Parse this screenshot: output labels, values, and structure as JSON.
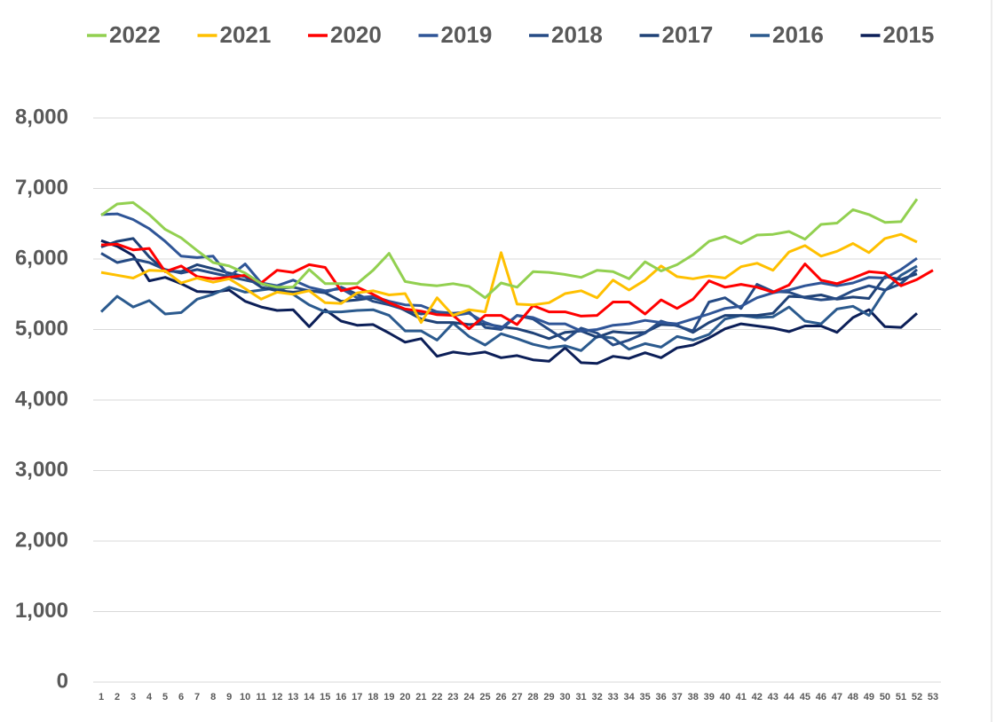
{
  "chart_data": {
    "type": "line",
    "categories": [
      1,
      2,
      3,
      4,
      5,
      6,
      7,
      8,
      9,
      10,
      11,
      12,
      13,
      14,
      15,
      16,
      17,
      18,
      19,
      20,
      21,
      22,
      23,
      24,
      25,
      26,
      27,
      28,
      29,
      30,
      31,
      32,
      33,
      34,
      35,
      36,
      37,
      38,
      39,
      40,
      41,
      42,
      43,
      44,
      45,
      46,
      47,
      48,
      49,
      50,
      51,
      52,
      53
    ],
    "ylim": [
      0,
      8000
    ],
    "yticks": [
      0,
      {
        "value": 1000,
        "label": "1,000"
      },
      {
        "value": 2000,
        "label": "2,000"
      },
      {
        "value": 3000,
        "label": "3,000"
      },
      {
        "value": 4000,
        "label": "4,000"
      },
      {
        "value": 5000,
        "label": "5,000"
      },
      {
        "value": 6000,
        "label": "6,000"
      },
      {
        "value": 7000,
        "label": "7,000"
      },
      {
        "value": 8000,
        "label": "8,000"
      }
    ],
    "grid": true,
    "legend": "top",
    "series": [
      {
        "name": "2022",
        "color": "#92d050",
        "values": [
          6620,
          6780,
          6800,
          6630,
          6420,
          6300,
          6120,
          5950,
          5900,
          5800,
          5650,
          5600,
          5600,
          5850,
          5650,
          5650,
          5650,
          5840,
          6080,
          5680,
          5640,
          5620,
          5650,
          5610,
          5450,
          5660,
          5600,
          5820,
          5810,
          5780,
          5740,
          5840,
          5820,
          5720,
          5960,
          5830,
          5920,
          6060,
          6250,
          6320,
          6220,
          6340,
          6350,
          6390,
          6280,
          6490,
          6510,
          6700,
          6630,
          6520,
          6530,
          6850,
          null
        ]
      },
      {
        "name": "2021",
        "color": "#ffc000",
        "values": [
          5810,
          5770,
          5730,
          5840,
          5830,
          5660,
          5730,
          5670,
          5720,
          5580,
          5430,
          5530,
          5500,
          5550,
          5380,
          5370,
          5520,
          5550,
          5490,
          5510,
          5100,
          5450,
          5200,
          5280,
          5250,
          6090,
          5360,
          5350,
          5380,
          5510,
          5550,
          5450,
          5700,
          5560,
          5700,
          5900,
          5750,
          5720,
          5760,
          5730,
          5890,
          5940,
          5840,
          6100,
          6190,
          6040,
          6110,
          6220,
          6090,
          6290,
          6350,
          6240,
          null
        ]
      },
      {
        "name": "2020",
        "color": "#ff0000",
        "values": [
          6200,
          6210,
          6130,
          6150,
          5820,
          5900,
          5750,
          5720,
          5740,
          5770,
          5660,
          5840,
          5810,
          5920,
          5880,
          5550,
          5600,
          5500,
          5380,
          5290,
          5260,
          5210,
          5200,
          5010,
          5200,
          5200,
          5070,
          5340,
          5250,
          5250,
          5190,
          5200,
          5390,
          5390,
          5220,
          5420,
          5300,
          5430,
          5690,
          5600,
          5640,
          5600,
          5530,
          5630,
          5930,
          5700,
          5650,
          5730,
          5820,
          5800,
          5620,
          5710,
          5840
        ]
      },
      {
        "name": "2019",
        "color": "#2f5597",
        "values": [
          6630,
          6640,
          6560,
          6430,
          6250,
          6040,
          6020,
          6040,
          5750,
          5930,
          5660,
          5620,
          5700,
          5600,
          5550,
          5580,
          5450,
          5470,
          5400,
          5350,
          5340,
          5250,
          5200,
          5230,
          5100,
          5020,
          5200,
          5170,
          5080,
          5080,
          4980,
          5000,
          5060,
          5080,
          5130,
          5100,
          5080,
          5150,
          5220,
          5300,
          5330,
          5450,
          5520,
          5560,
          5620,
          5660,
          5620,
          5660,
          5740,
          5730,
          5850,
          6010,
          null
        ]
      },
      {
        "name": "2018",
        "color": "#264b85",
        "values": [
          6080,
          5950,
          6000,
          5950,
          5850,
          5800,
          5850,
          5800,
          5750,
          5700,
          5650,
          5580,
          5600,
          5550,
          5530,
          5600,
          5500,
          5400,
          5350,
          5280,
          5220,
          5250,
          5230,
          5250,
          5030,
          5000,
          5200,
          5150,
          5000,
          4850,
          5020,
          4950,
          4780,
          4850,
          4950,
          5120,
          5050,
          4980,
          5390,
          5450,
          5300,
          5640,
          5540,
          5530,
          5450,
          5420,
          5440,
          5550,
          5620,
          5560,
          5650,
          5850,
          null
        ]
      },
      {
        "name": "2017",
        "color": "#1f4277",
        "values": [
          6170,
          6250,
          6290,
          6030,
          5830,
          5820,
          5920,
          5860,
          5800,
          5750,
          5600,
          5550,
          5530,
          5550,
          5520,
          5400,
          5420,
          5450,
          5380,
          5270,
          5150,
          5100,
          5100,
          5070,
          5080,
          5040,
          5010,
          4950,
          4870,
          4960,
          4980,
          4890,
          4970,
          4950,
          4960,
          5070,
          5060,
          4960,
          5100,
          5200,
          5200,
          5200,
          5230,
          5470,
          5460,
          5490,
          5430,
          5460,
          5440,
          5750,
          5710,
          5790,
          null
        ]
      },
      {
        "name": "2016",
        "color": "#2b5a8e",
        "values": [
          5250,
          5470,
          5320,
          5410,
          5220,
          5240,
          5430,
          5500,
          5600,
          5530,
          5560,
          5590,
          5500,
          5350,
          5250,
          5250,
          5270,
          5280,
          5200,
          4980,
          4980,
          4850,
          5090,
          4900,
          4780,
          4940,
          4870,
          4790,
          4740,
          4770,
          4700,
          4900,
          4880,
          4720,
          4800,
          4750,
          4900,
          4850,
          4930,
          5150,
          5200,
          5170,
          5180,
          5320,
          5120,
          5080,
          5290,
          5330,
          5200,
          5550,
          5770,
          5900,
          null
        ]
      },
      {
        "name": "2015",
        "color": "#0c1f58",
        "values": [
          6260,
          6180,
          6050,
          5690,
          5740,
          5650,
          5540,
          5530,
          5560,
          5400,
          5320,
          5270,
          5280,
          5040,
          5280,
          5120,
          5060,
          5070,
          4950,
          4820,
          4870,
          4620,
          4680,
          4650,
          4680,
          4600,
          4630,
          4570,
          4550,
          4740,
          4530,
          4520,
          4620,
          4590,
          4670,
          4600,
          4740,
          4780,
          4880,
          5010,
          5080,
          5050,
          5020,
          4970,
          5050,
          5050,
          4960,
          5170,
          5280,
          5040,
          5030,
          5230,
          null
        ]
      }
    ]
  }
}
